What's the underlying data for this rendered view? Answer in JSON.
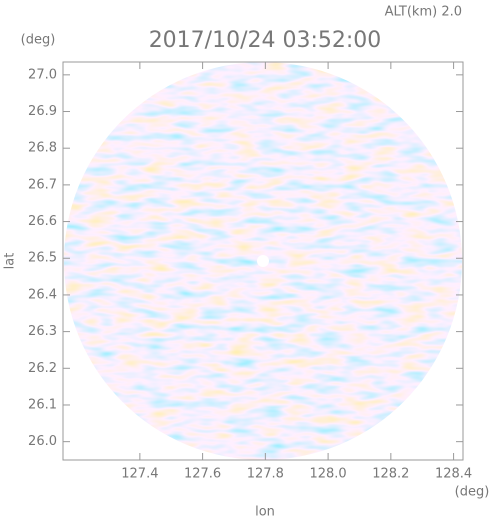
{
  "chart_data": {
    "type": "image",
    "title": "2017/10/24 03:52:00",
    "subtitle": "ALT(km) 2.0",
    "x_label": "lon",
    "y_label": "lat",
    "x_unit": "(deg)",
    "y_unit": "(deg)",
    "xlim": [
      127.155,
      128.43
    ],
    "ylim": [
      25.95,
      27.035
    ],
    "xticks": [
      127.4,
      127.6,
      127.8,
      {
        "value": 128,
        "label": "128.0"
      },
      128.2,
      128.4
    ],
    "yticks": [
      {
        "value": 26,
        "label": "26.0"
      },
      26.1,
      26.2,
      26.3,
      26.4,
      26.5,
      26.6,
      26.7,
      26.8,
      26.9,
      {
        "value": 27,
        "label": "27.0"
      }
    ]
  }
}
